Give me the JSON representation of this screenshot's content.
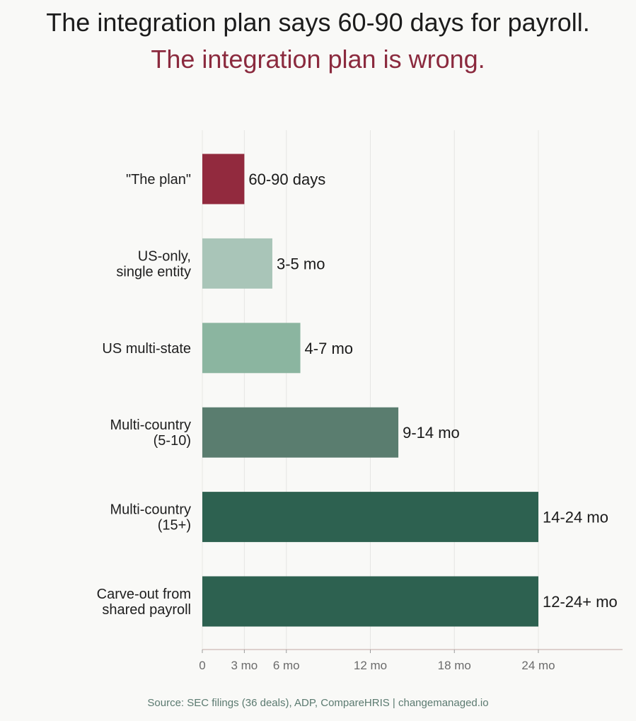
{
  "header": {
    "title_line1": "The integration plan says 60-90 days for payroll.",
    "title_line2": "The integration plan is wrong.",
    "title_line2_color": "#8b2a3e"
  },
  "chart_data": {
    "type": "bar",
    "orientation": "horizontal",
    "categories": [
      [
        "\"The plan\""
      ],
      [
        "US-only,",
        "single entity"
      ],
      [
        "US multi-state"
      ],
      [
        "Multi-country",
        "(5-10)"
      ],
      [
        "Multi-country",
        "(15+)"
      ],
      [
        "Carve-out from",
        "shared payroll"
      ]
    ],
    "values": [
      3,
      5,
      7,
      14,
      24,
      24
    ],
    "value_labels": [
      "60-90 days",
      "3-5 mo",
      "4-7 mo",
      "9-14 mo",
      "14-24 mo",
      "12-24+ mo"
    ],
    "colors": [
      "#922a3e",
      "#a9c5b8",
      "#8bb5a0",
      "#5a7d6f",
      "#2d6150",
      "#2d6150"
    ],
    "xlim": [
      0,
      30
    ],
    "x_ticks": [
      0,
      3,
      6,
      12,
      18,
      24
    ],
    "x_tick_labels": [
      "0",
      "3 mo",
      "6 mo",
      "12 mo",
      "18 mo",
      "24 mo"
    ],
    "xlabel": "",
    "ylabel": "",
    "grid": "vertical",
    "legend": "none"
  },
  "footer": {
    "source": "Source: SEC filings (36 deals), ADP, CompareHRIS  |  changemanaged.io"
  }
}
